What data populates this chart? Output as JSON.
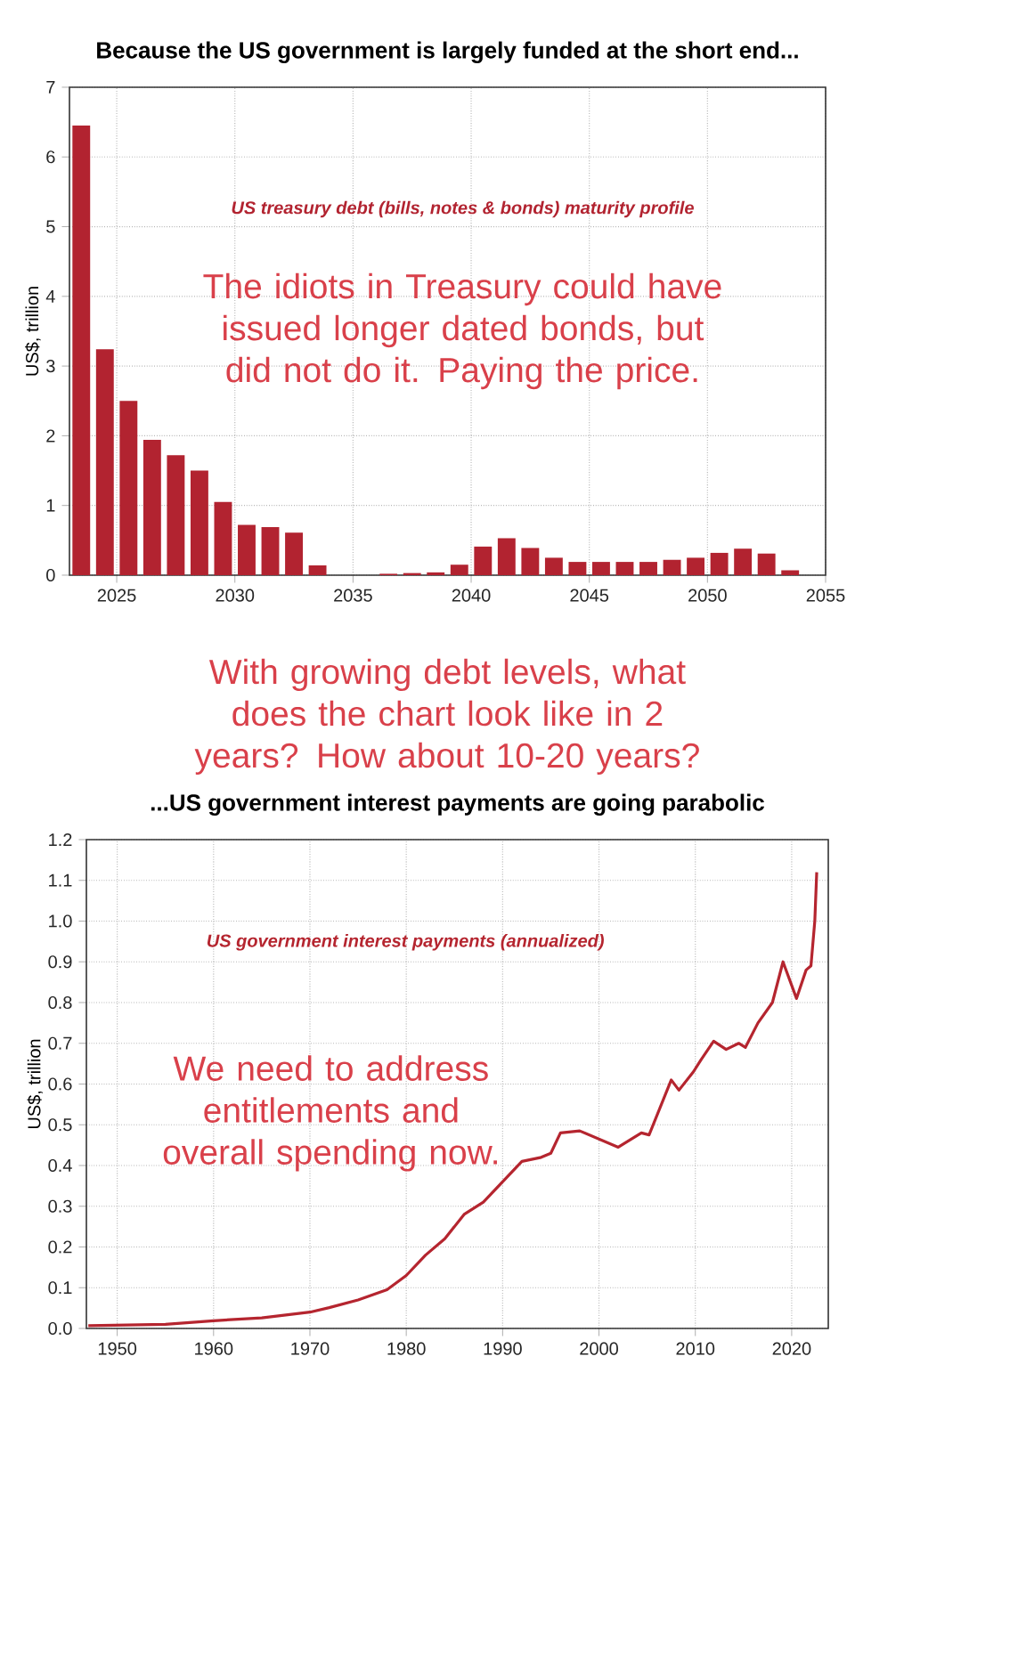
{
  "chart_data": [
    {
      "type": "bar",
      "title": "Because the US government is largely funded at the short end...",
      "ylabel": "US$, trillion",
      "x": [
        2023.5,
        2024.5,
        2025.5,
        2026.5,
        2027.5,
        2028.5,
        2029.5,
        2030.5,
        2031.5,
        2032.5,
        2033.5,
        2034.5,
        2035.5,
        2036.5,
        2037.5,
        2038.5,
        2039.5,
        2040.5,
        2041.5,
        2042.5,
        2043.5,
        2044.5,
        2045.5,
        2046.5,
        2047.5,
        2048.5,
        2049.5,
        2050.5,
        2051.5,
        2052.5,
        2053.5
      ],
      "values": [
        6.45,
        3.24,
        2.5,
        1.94,
        1.72,
        1.5,
        1.05,
        0.72,
        0.69,
        0.61,
        0.14,
        0,
        0,
        0.02,
        0.03,
        0.04,
        0.15,
        0.41,
        0.53,
        0.39,
        0.25,
        0.19,
        0.19,
        0.19,
        0.19,
        0.22,
        0.25,
        0.32,
        0.38,
        0.31,
        0.07
      ],
      "color": "#b22330",
      "xlim": [
        2023,
        2055
      ],
      "xticks": [
        2025,
        2030,
        2035,
        2040,
        2045,
        2050,
        2055
      ],
      "ylim": [
        0,
        7
      ],
      "yticks": [
        0,
        1,
        2,
        3,
        4,
        5,
        6,
        7
      ],
      "grid": true,
      "annotations": [
        "US treasury debt (bills, notes & bonds) maturity profile",
        "The idiots in Treasury could have issued longer dated bonds, but did not do it. Paying the price.",
        "With growing debt levels, what does the chart look like in 2 years? How about 10-20 years?"
      ]
    },
    {
      "type": "line",
      "title": "...US government interest payments are going parabolic",
      "ylabel": "US$, trillion",
      "x": [
        1947,
        1955,
        1960,
        1965,
        1970,
        1972,
        1975,
        1978,
        1980,
        1982,
        1984,
        1986,
        1988,
        1990,
        1992,
        1994,
        1995,
        1996,
        1998,
        2000,
        2002,
        2004.4,
        2005.2,
        2007.5,
        2008.3,
        2009.8,
        2010.6,
        2011.9,
        2013.2,
        2014.5,
        2015.2,
        2016.5,
        2018,
        2019.1,
        2020.5,
        2021.5,
        2022,
        2022.4,
        2022.6
      ],
      "values": [
        0.007,
        0.01,
        0.019,
        0.026,
        0.04,
        0.051,
        0.07,
        0.095,
        0.13,
        0.18,
        0.22,
        0.28,
        0.31,
        0.36,
        0.41,
        0.42,
        0.43,
        0.48,
        0.485,
        0.465,
        0.445,
        0.48,
        0.475,
        0.61,
        0.585,
        0.63,
        0.66,
        0.705,
        0.685,
        0.7,
        0.69,
        0.75,
        0.8,
        0.9,
        0.81,
        0.88,
        0.89,
        1.0,
        1.12
      ],
      "color": "#b5252f",
      "xlim": [
        1946.8,
        2023.8
      ],
      "xticks": [
        1950,
        1960,
        1970,
        1980,
        1990,
        2000,
        2010,
        2020
      ],
      "ylim": [
        0,
        1.2
      ],
      "yticks": [
        {
          "value": 0,
          "label": "0.0"
        },
        0.1,
        0.2,
        0.3,
        0.4,
        0.5,
        0.6,
        0.7,
        0.8,
        0.9,
        {
          "value": 1,
          "label": "1.0"
        },
        1.1,
        1.2
      ],
      "grid": true,
      "annotations": [
        "US government interest payments (annualized)",
        "We need to address entitlements and overall spending now."
      ]
    }
  ]
}
